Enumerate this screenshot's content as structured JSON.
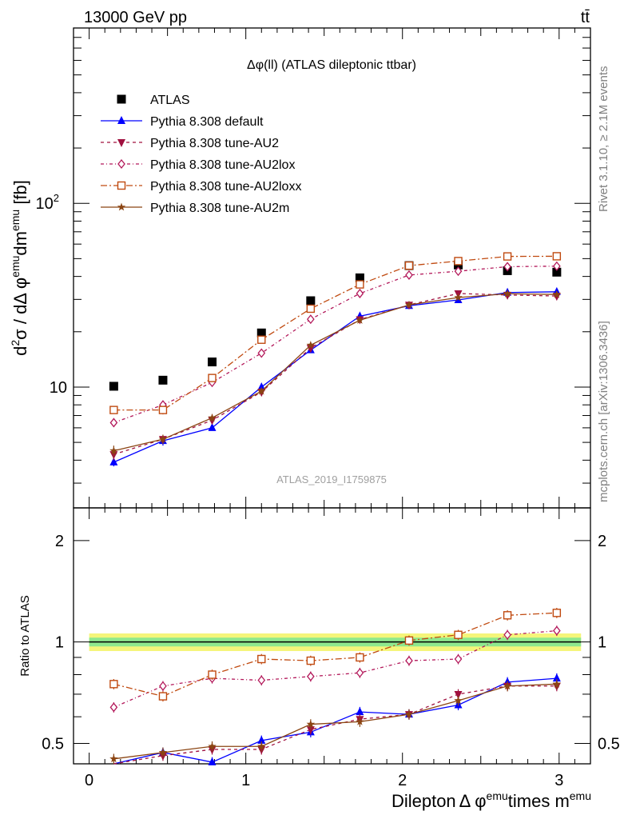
{
  "header": {
    "energy_label": "13000 GeV pp",
    "process_label": "tt̄"
  },
  "side_labels": {
    "rivet": "Rivet 3.1.10, ≥ 2.1M events",
    "mcplots": "mcplots.cern.ch [arXiv:1306.3436]"
  },
  "chart_data": [
    {
      "type": "line",
      "panel": "main",
      "title": "Δφ(ll) (ATLAS dileptonic ttbar)",
      "ylabel_parts": [
        "d",
        "2",
        "σ / dΔ φ",
        "emu",
        "dm",
        "emu",
        " [fb]"
      ],
      "y_scale": "log",
      "ylim": [
        2.2,
        900
      ],
      "xlim": [
        -0.1,
        3.2
      ],
      "y_tick_labels": [
        {
          "v": 10,
          "label": "10"
        },
        {
          "v": 100,
          "label": "10",
          "sup": "2"
        }
      ],
      "watermark": "ATLAS_2019_I1759875",
      "legend_position": "top-left",
      "x": [
        0.157,
        0.471,
        0.785,
        1.1,
        1.414,
        1.728,
        2.042,
        2.356,
        2.67,
        2.985
      ],
      "series": [
        {
          "name": "ATLAS",
          "color": "#000000",
          "marker": "square-filled",
          "dash": "none",
          "values": [
            10.1,
            10.9,
            13.7,
            19.7,
            29.5,
            39.3,
            45.8,
            46.2,
            43.0,
            42.2
          ]
        },
        {
          "name": "Pythia 8.308 default",
          "color": "#0000ff",
          "marker": "triangle-up",
          "dash": "solid",
          "values": [
            3.9,
            5.1,
            6.0,
            10.0,
            15.9,
            24.3,
            27.7,
            29.8,
            32.7,
            33.0
          ],
          "errors": [
            0.2,
            0.3,
            0.2,
            0.4,
            0.4,
            0.5,
            0.5,
            0.6,
            0.6,
            0.6
          ]
        },
        {
          "name": "Pythia 8.308 tune-AU2",
          "color": "#a0103f",
          "marker": "triangle-down",
          "dash": "4,4",
          "values": [
            4.3,
            5.2,
            6.6,
            9.4,
            16.3,
            23.3,
            28.0,
            32.3,
            31.7,
            31.3
          ],
          "errors": [
            0.3,
            0.3,
            0.3,
            0.4,
            0.4,
            0.5,
            0.5,
            0.6,
            0.6,
            0.6
          ]
        },
        {
          "name": "Pythia 8.308 tune-AU2lox",
          "color": "#b3185a",
          "marker": "diamond-open",
          "dash": "4,3,1,3",
          "values": [
            6.4,
            8.0,
            10.6,
            15.3,
            23.4,
            32.3,
            40.7,
            42.7,
            45.2,
            45.5
          ],
          "errors": [
            0.3,
            0.4,
            0.4,
            0.5,
            0.5,
            0.6,
            0.7,
            0.7,
            0.7,
            0.7
          ]
        },
        {
          "name": "Pythia 8.308 tune-AU2loxx",
          "color": "#c04a10",
          "marker": "square-open",
          "dash": "8,3,2,3",
          "values": [
            7.5,
            7.5,
            11.2,
            18.1,
            26.7,
            36.2,
            45.8,
            48.5,
            51.4,
            51.5
          ],
          "errors": [
            0.3,
            0.4,
            0.4,
            0.5,
            0.6,
            0.7,
            0.7,
            0.8,
            0.8,
            0.8
          ]
        },
        {
          "name": "Pythia 8.308 tune-AU2m",
          "color": "#8b4513",
          "marker": "star",
          "dash": "solid",
          "values": [
            4.5,
            5.2,
            6.8,
            9.5,
            16.9,
            23.1,
            28.0,
            30.7,
            32.2,
            31.9
          ],
          "errors": [
            0.3,
            0.3,
            0.3,
            0.4,
            0.4,
            0.5,
            0.5,
            0.6,
            0.6,
            0.6
          ]
        }
      ]
    },
    {
      "type": "line",
      "panel": "ratio",
      "ylabel": "Ratio to ATLAS",
      "y_scale": "log",
      "ylim": [
        0.435,
        2.5
      ],
      "xlim": [
        -0.1,
        3.2
      ],
      "y_tick_labels": [
        {
          "v": 0.5,
          "label": "0.5"
        },
        {
          "v": 1,
          "label": "1"
        },
        {
          "v": 2,
          "label": "2"
        }
      ],
      "xlabel": "Dilepton Δ φ^emu times m^emu",
      "x_tick_labels": [
        "0",
        "1",
        "2",
        "3"
      ],
      "band": {
        "inner": [
          0.97,
          1.03
        ],
        "outer": [
          0.94,
          1.06
        ]
      },
      "x": [
        0.157,
        0.471,
        0.785,
        1.1,
        1.414,
        1.728,
        2.042,
        2.356,
        2.67,
        2.985
      ],
      "series": [
        {
          "name": "Pythia 8.308 default",
          "values": [
            0.39,
            0.47,
            0.44,
            0.51,
            0.54,
            0.62,
            0.61,
            0.65,
            0.76,
            0.78
          ]
        },
        {
          "name": "Pythia 8.308 tune-AU2",
          "values": [
            0.43,
            0.46,
            0.48,
            0.48,
            0.55,
            0.59,
            0.61,
            0.7,
            0.74,
            0.74
          ]
        },
        {
          "name": "Pythia 8.308 tune-AU2lox",
          "values": [
            0.64,
            0.74,
            0.78,
            0.77,
            0.79,
            0.81,
            0.88,
            0.89,
            1.05,
            1.08
          ]
        },
        {
          "name": "Pythia 8.308 tune-AU2loxx",
          "values": [
            0.75,
            0.69,
            0.8,
            0.89,
            0.88,
            0.9,
            1.01,
            1.05,
            1.2,
            1.22
          ]
        },
        {
          "name": "Pythia 8.308 tune-AU2m",
          "values": [
            0.45,
            0.47,
            0.49,
            0.49,
            0.57,
            0.58,
            0.61,
            0.67,
            0.74,
            0.75
          ]
        }
      ]
    }
  ]
}
